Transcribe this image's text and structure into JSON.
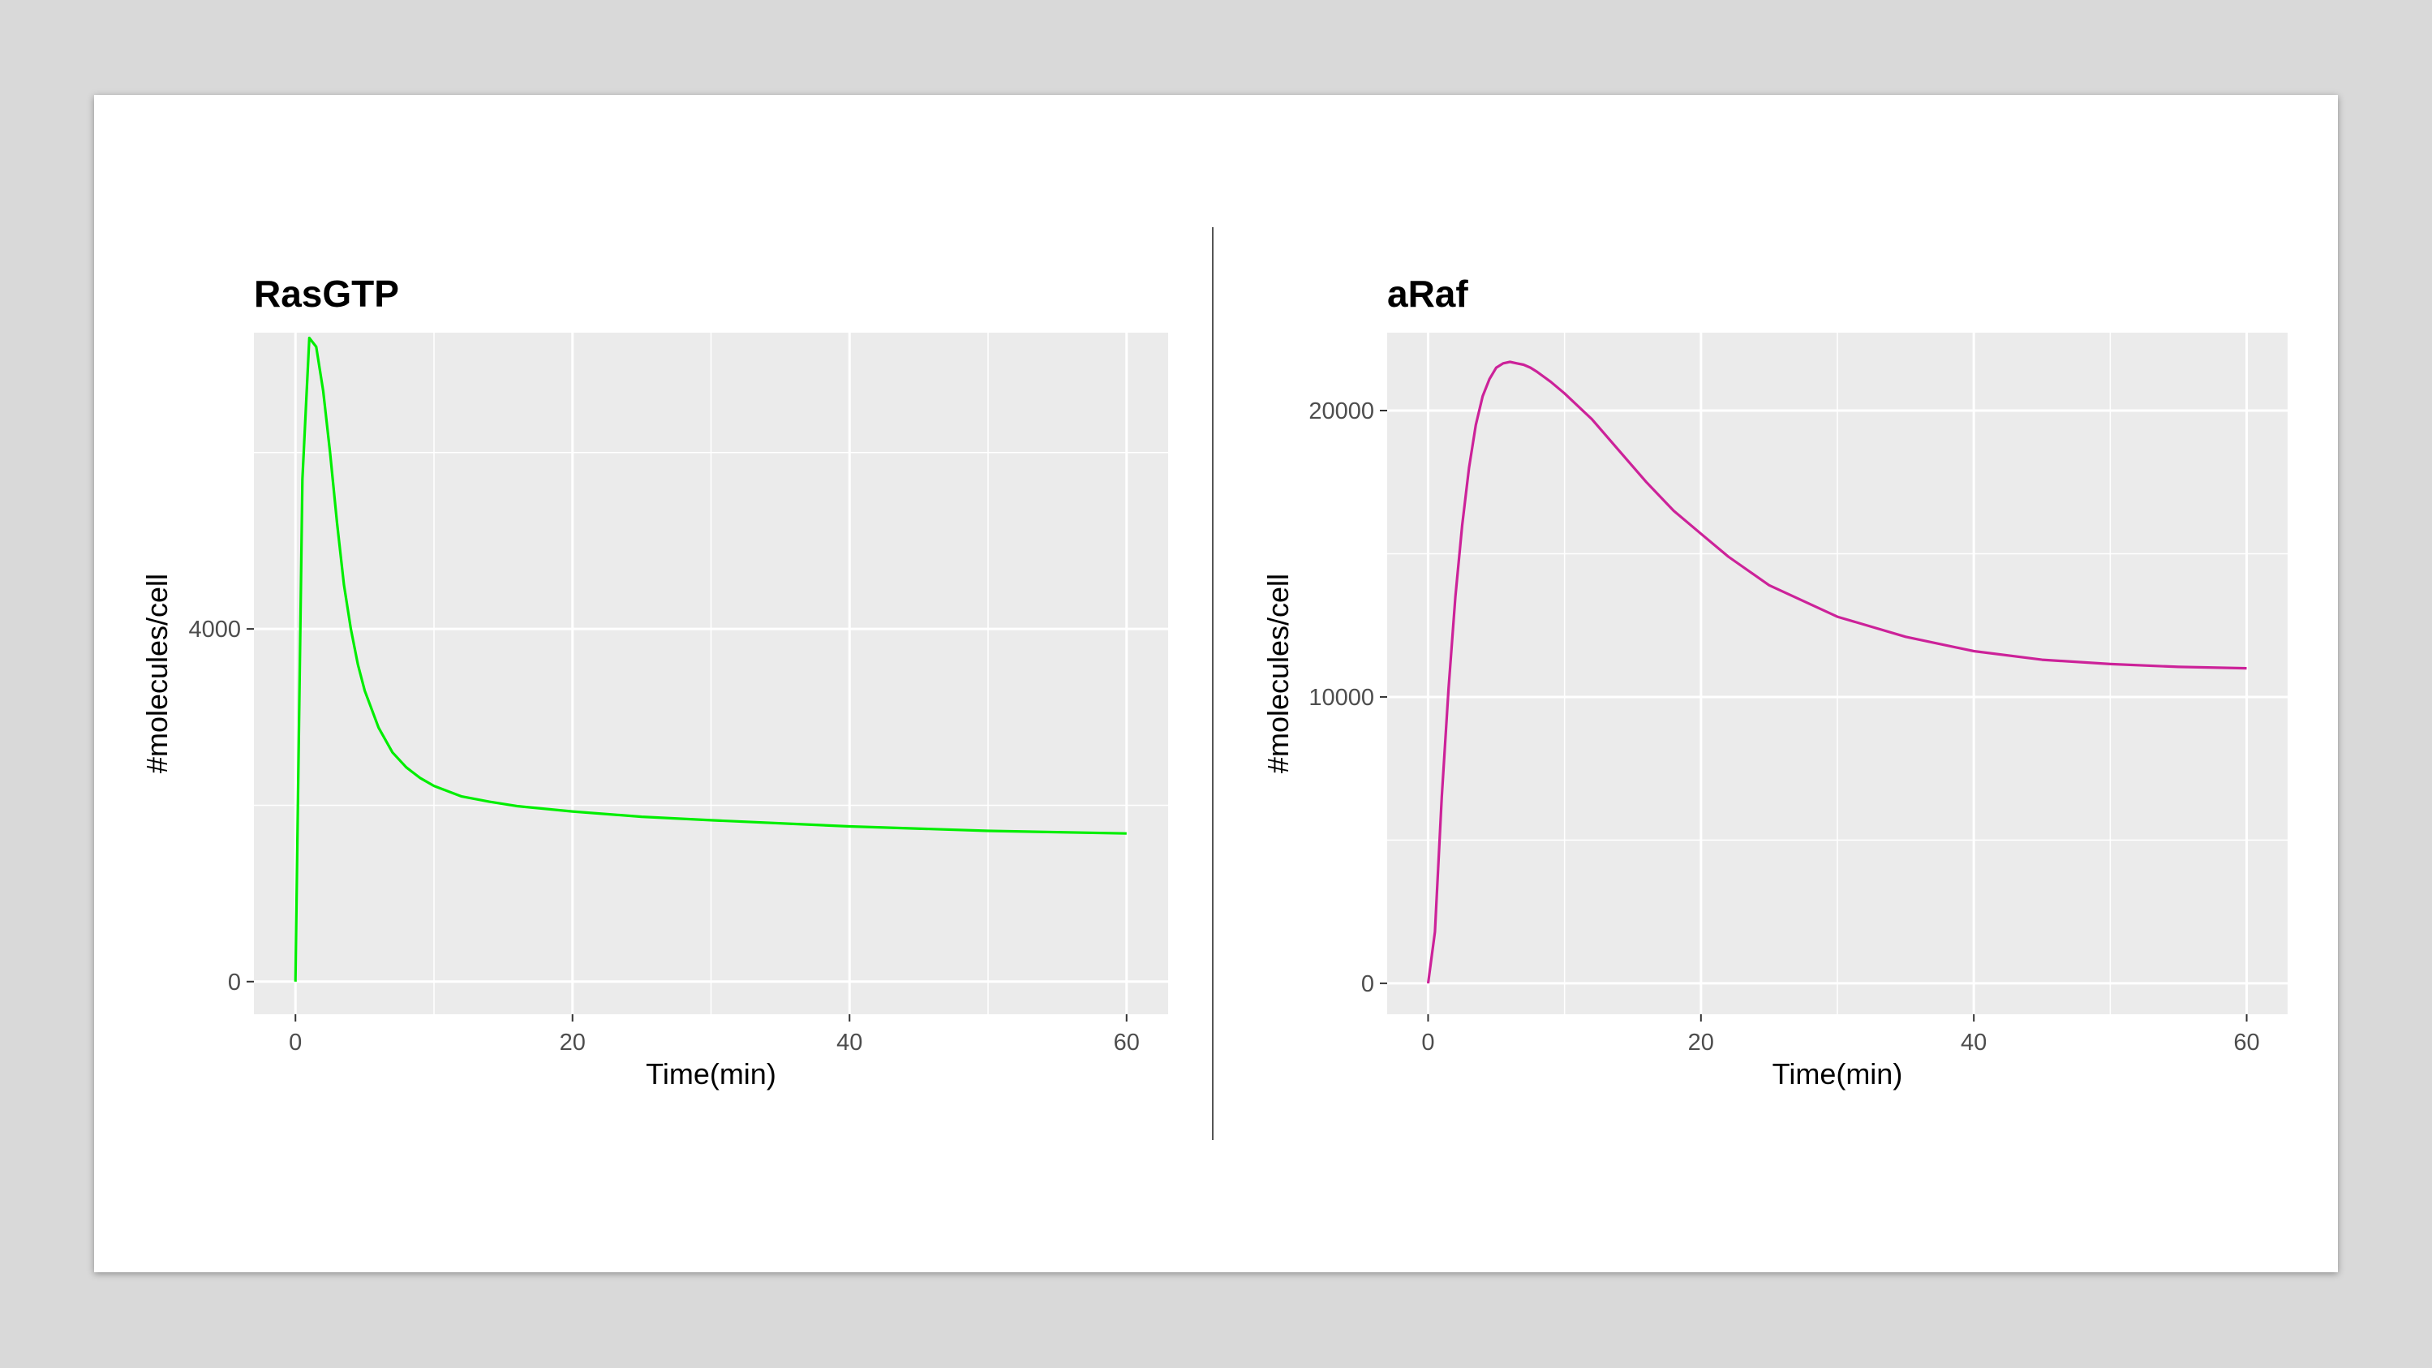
{
  "chart_data": [
    {
      "type": "line",
      "title": "RasGTP",
      "xlabel": "Time(min)",
      "ylabel": "#molecules/cell",
      "xlim": [
        -3,
        63
      ],
      "ylim": [
        -370,
        7360
      ],
      "x_ticks": [
        0,
        20,
        40,
        60
      ],
      "y_ticks": [
        0,
        4000
      ],
      "grid": true,
      "legend": "none",
      "color": "#00ee00",
      "series": [
        {
          "x": [
            0,
            0.5,
            1,
            1.5,
            2,
            2.5,
            3,
            3.5,
            4,
            4.5,
            5,
            6,
            7,
            8,
            9,
            10,
            12,
            14,
            16,
            20,
            25,
            30,
            40,
            50,
            60
          ],
          "y": [
            0,
            5700,
            7300,
            7200,
            6700,
            6000,
            5200,
            4500,
            4000,
            3600,
            3300,
            2880,
            2600,
            2430,
            2310,
            2220,
            2100,
            2040,
            1990,
            1930,
            1870,
            1830,
            1760,
            1710,
            1680
          ]
        }
      ]
    },
    {
      "type": "line",
      "title": "aRaf",
      "xlabel": "Time(min)",
      "ylabel": "#molecules/cell",
      "xlim": [
        -3,
        63
      ],
      "ylim": [
        -1080,
        22720
      ],
      "x_ticks": [
        0,
        20,
        40,
        60
      ],
      "y_ticks": [
        0,
        10000,
        20000
      ],
      "grid": true,
      "legend": "none",
      "color": "#cc2299",
      "series": [
        {
          "x": [
            0,
            0.5,
            1,
            1.5,
            2,
            2.5,
            3,
            3.5,
            4,
            4.5,
            5,
            5.5,
            6,
            6.5,
            7,
            7.5,
            8,
            9,
            10,
            12,
            14,
            16,
            18,
            20,
            22,
            25,
            30,
            35,
            40,
            45,
            50,
            55,
            60
          ],
          "y": [
            0,
            1800,
            6500,
            10300,
            13500,
            16000,
            18000,
            19500,
            20500,
            21100,
            21500,
            21650,
            21700,
            21650,
            21600,
            21500,
            21350,
            21000,
            20600,
            19700,
            18600,
            17500,
            16500,
            15700,
            14900,
            13900,
            12800,
            12100,
            11600,
            11300,
            11150,
            11050,
            11000
          ]
        }
      ]
    }
  ]
}
